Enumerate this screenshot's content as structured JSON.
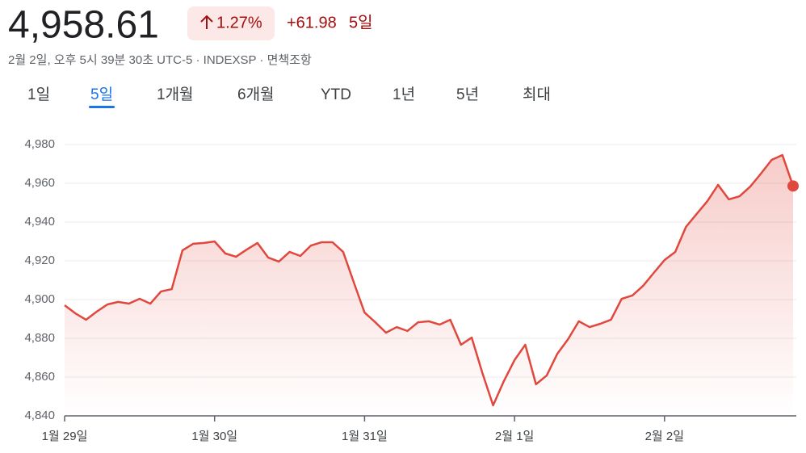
{
  "header": {
    "price": "4,958.61",
    "change_percent": "1.27%",
    "change_value": "+61.98",
    "change_period": "5일",
    "subtitle": "2월 2일, 오후 5시 39분 30초 UTC-5 · INDEXSP · 면책조항"
  },
  "tabs": [
    {
      "label": "1일",
      "active": false
    },
    {
      "label": "5일",
      "active": true
    },
    {
      "label": "1개월",
      "active": false
    },
    {
      "label": "6개월",
      "active": false
    },
    {
      "label": "YTD",
      "active": false
    },
    {
      "label": "1년",
      "active": false
    },
    {
      "label": "5년",
      "active": false
    },
    {
      "label": "최대",
      "active": false
    }
  ],
  "chart_data": {
    "type": "line",
    "color": "#e0483e",
    "grid": true,
    "x": [
      0,
      1,
      2,
      3,
      4,
      5,
      6,
      7,
      8,
      9,
      10,
      11,
      12,
      13,
      14,
      15,
      16,
      17,
      18,
      19,
      20,
      21,
      22,
      23,
      24,
      25,
      26,
      27,
      28,
      29,
      30,
      31,
      32,
      33,
      34,
      35,
      36,
      37,
      38,
      39,
      40,
      41,
      42,
      43,
      44,
      45,
      46,
      47,
      48,
      49,
      50,
      51,
      52,
      53,
      54,
      55,
      56,
      57,
      58,
      59,
      60,
      61,
      62,
      63,
      64,
      65,
      66,
      67,
      68
    ],
    "series": [
      {
        "values": [
          4897.1,
          4892.9,
          4889.6,
          4893.8,
          4897.5,
          4898.8,
          4897.9,
          4900.4,
          4897.9,
          4904.2,
          4905.4,
          4925.4,
          4928.8,
          4929.2,
          4930,
          4923.8,
          4922.1,
          4925.8,
          4929.2,
          4921.7,
          4919.6,
          4924.6,
          4922.5,
          4927.9,
          4929.6,
          4929.6,
          4924.6,
          4908.8,
          4893.3,
          4888.3,
          4882.9,
          4885.8,
          4883.8,
          4888.3,
          4888.8,
          4887.1,
          4889.6,
          4876.7,
          4880.4,
          4862.1,
          4845.4,
          4857.9,
          4868.8,
          4876.7,
          4856.3,
          4860.8,
          4872.1,
          4879.6,
          4888.8,
          4885.8,
          4887.5,
          4889.6,
          4900.4,
          4902.1,
          4907.1,
          4913.8,
          4920.4,
          4924.6,
          4937.5,
          4944.2,
          4950.8,
          4959.2,
          4951.7,
          4953.3,
          4958.3,
          4965,
          4972.1,
          4974.6,
          4958.61
        ]
      }
    ],
    "xlim": [
      0,
      68
    ],
    "ylim": [
      4840,
      4980
    ],
    "yticks": [
      {
        "value": 4840,
        "label": "4,840"
      },
      {
        "value": 4860,
        "label": "4,860"
      },
      {
        "value": 4880,
        "label": "4,880"
      },
      {
        "value": 4900,
        "label": "4,900"
      },
      {
        "value": 4920,
        "label": "4,920"
      },
      {
        "value": 4940,
        "label": "4,940"
      },
      {
        "value": 4960,
        "label": "4,960"
      },
      {
        "value": 4980,
        "label": "4,980"
      }
    ],
    "xticks": [
      {
        "value": 0,
        "label": "1월 29일"
      },
      {
        "value": 14,
        "label": "1월 30일"
      },
      {
        "value": 28,
        "label": "1월 31일"
      },
      {
        "value": 42,
        "label": "2월 1일"
      },
      {
        "value": 56,
        "label": "2월 2일"
      }
    ]
  }
}
